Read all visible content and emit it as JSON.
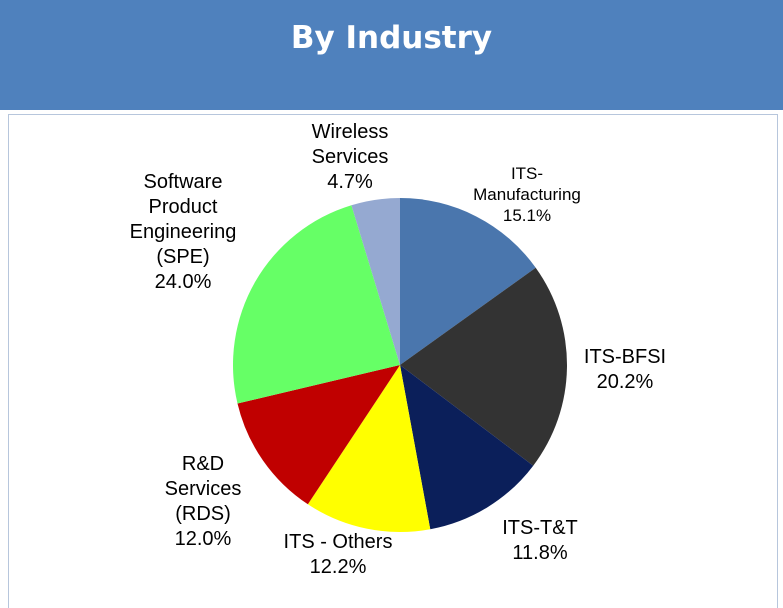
{
  "chart_data": {
    "type": "pie",
    "title": "By Industry",
    "categories": [
      "ITS-\nManufacturing",
      "ITS-BFSI",
      "ITS-T&T",
      "ITS - Others",
      "R&D\nServices\n(RDS)",
      "Software\nProduct\nEngineering\n(SPE)",
      "Wireless\nServices"
    ],
    "values": [
      15.1,
      20.2,
      11.8,
      12.2,
      12.0,
      24.0,
      4.7
    ],
    "value_labels": [
      "15.1%",
      "20.2%",
      "11.8%",
      "12.2%",
      "12.0%",
      "24.0%",
      "4.7%"
    ],
    "colors": [
      "#4a76ad",
      "#333333",
      "#0b1f5a",
      "#ffff00",
      "#c00000",
      "#66ff66",
      "#95a9d1"
    ]
  }
}
